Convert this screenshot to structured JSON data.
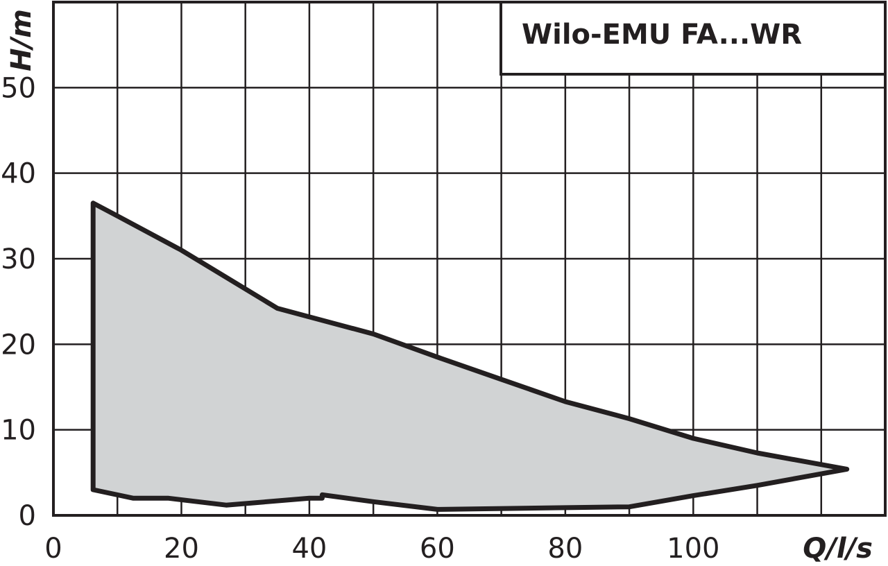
{
  "chart_data": {
    "type": "area",
    "title": "Wilo-EMU FA...WR",
    "xlabel": "Q/l/s",
    "ylabel": "H/m",
    "xlim": [
      0,
      130
    ],
    "ylim": [
      0,
      60
    ],
    "x_ticks": [
      0,
      20,
      40,
      60,
      80,
      100
    ],
    "y_ticks": [
      0,
      10,
      20,
      30,
      40,
      50
    ],
    "grid": true,
    "grid_x_step": 10,
    "grid_y_step": 10,
    "fill_color": "#d1d3d4",
    "stroke_color": "#231f20",
    "series": [
      {
        "points": [
          {
            "x": 6.2,
            "y": 36.5
          },
          {
            "x": 10,
            "y": 35.0
          },
          {
            "x": 20,
            "y": 31.0
          },
          {
            "x": 35,
            "y": 24.2
          },
          {
            "x": 50,
            "y": 21.2
          },
          {
            "x": 60,
            "y": 18.5
          },
          {
            "x": 70,
            "y": 15.9
          },
          {
            "x": 80,
            "y": 13.3
          },
          {
            "x": 90,
            "y": 11.3
          },
          {
            "x": 100,
            "y": 9.0
          },
          {
            "x": 110,
            "y": 7.3
          },
          {
            "x": 124,
            "y": 5.4
          },
          {
            "x": 110,
            "y": 3.5
          },
          {
            "x": 100,
            "y": 2.3
          },
          {
            "x": 90,
            "y": 1.0
          },
          {
            "x": 80,
            "y": 0.9
          },
          {
            "x": 60,
            "y": 0.7
          },
          {
            "x": 50,
            "y": 1.6
          },
          {
            "x": 42,
            "y": 2.4
          },
          {
            "x": 42,
            "y": 2.0
          },
          {
            "x": 40,
            "y": 2.0
          },
          {
            "x": 27,
            "y": 1.2
          },
          {
            "x": 18,
            "y": 2.0
          },
          {
            "x": 12.5,
            "y": 2.0
          },
          {
            "x": 6.2,
            "y": 3.0
          }
        ]
      }
    ]
  }
}
